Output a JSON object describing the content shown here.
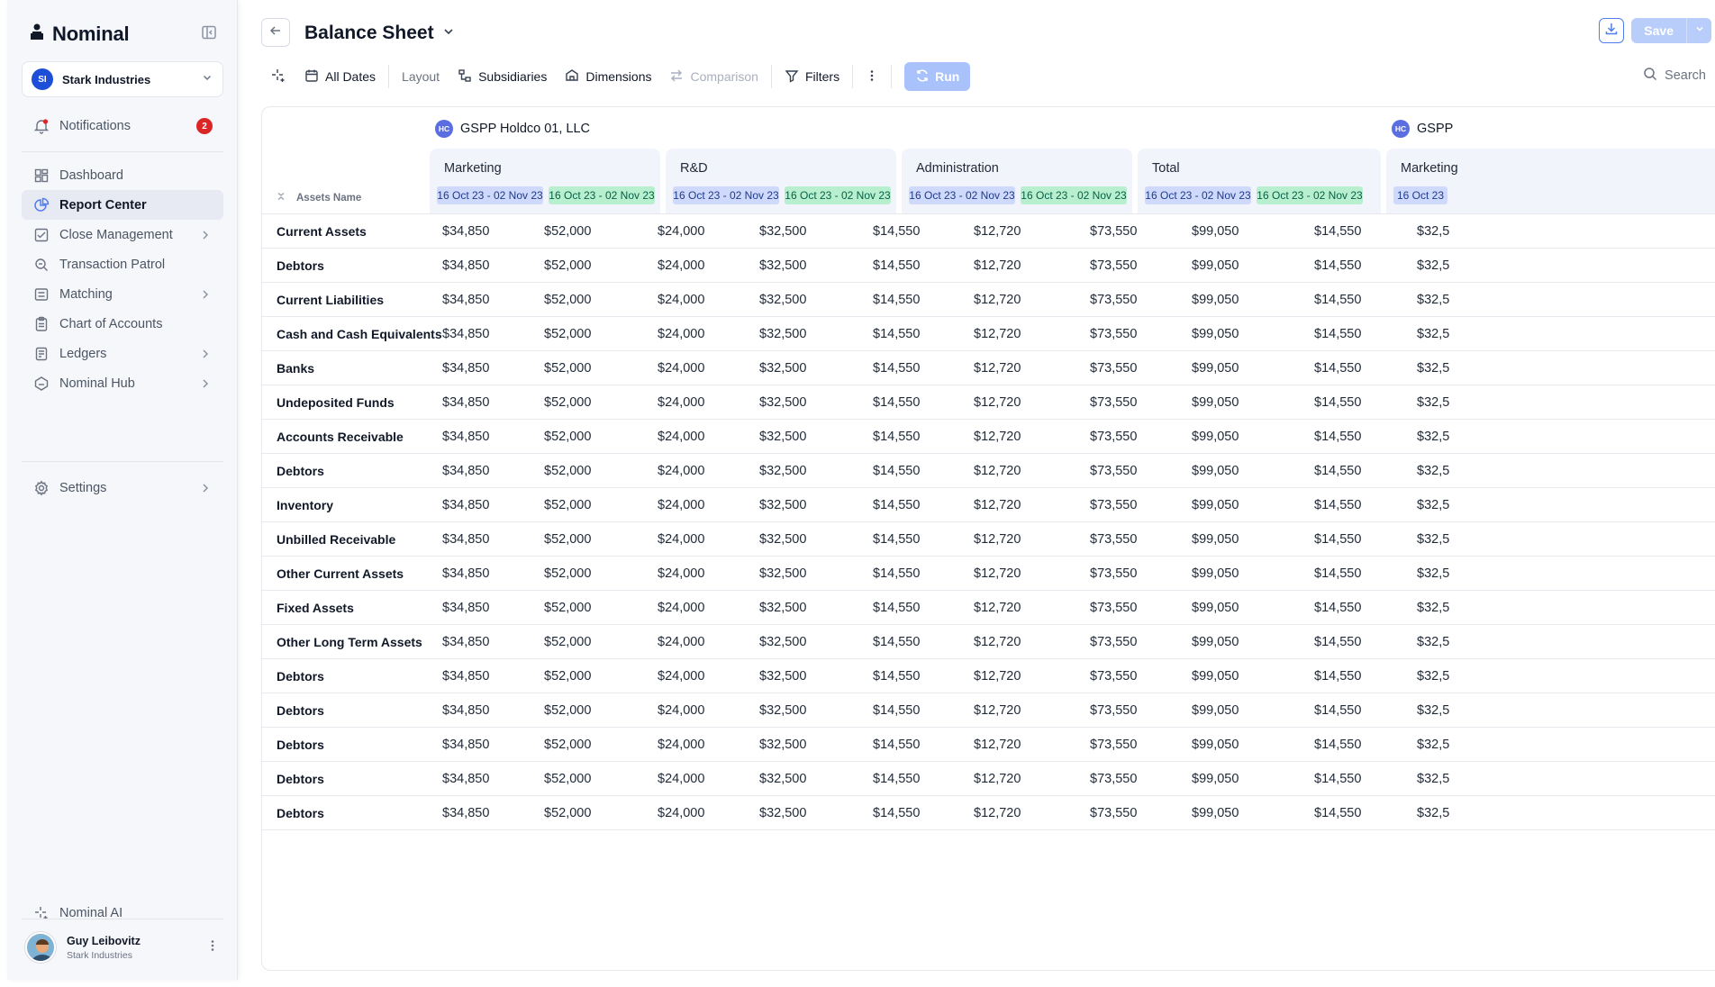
{
  "sidebar": {
    "brand": "Nominal",
    "org": {
      "initials": "SI",
      "name": "Stark Industries"
    },
    "notifications": {
      "label": "Notifications",
      "count": "2"
    },
    "items": [
      {
        "label": "Dashboard",
        "icon": "dashboard-icon",
        "chevron": false,
        "active": false
      },
      {
        "label": "Report Center",
        "icon": "pie-chart-icon",
        "chevron": false,
        "active": true
      },
      {
        "label": "Close Management",
        "icon": "checklist-icon",
        "chevron": true,
        "active": false
      },
      {
        "label": "Transaction Patrol",
        "icon": "search-doc-icon",
        "chevron": false,
        "active": false
      },
      {
        "label": "Matching",
        "icon": "matching-icon",
        "chevron": true,
        "active": false
      },
      {
        "label": "Chart of Accounts",
        "icon": "clipboard-icon",
        "chevron": false,
        "active": false
      },
      {
        "label": "Ledgers",
        "icon": "ledger-icon",
        "chevron": true,
        "active": false
      },
      {
        "label": "Nominal Hub",
        "icon": "hub-icon",
        "chevron": true,
        "active": false
      }
    ],
    "settings": "Settings",
    "ai": "Nominal AI",
    "user": {
      "name": "Guy Leibovitz",
      "org": "Stark Industries"
    }
  },
  "header": {
    "title": "Balance Sheet",
    "save": "Save"
  },
  "toolbar": {
    "all_dates": "All Dates",
    "layout": "Layout",
    "subsidiaries": "Subsidiaries",
    "dimensions": "Dimensions",
    "comparison": "Comparison",
    "filters": "Filters",
    "run": "Run",
    "search": "Search"
  },
  "table": {
    "entities": [
      {
        "initials": "HC",
        "name": "GSPP Holdco 01, LLC"
      },
      {
        "initials": "HC",
        "name": "GSPP"
      }
    ],
    "assets_header": "Assets Name",
    "groups": [
      "Marketing",
      "R&D",
      "Administration",
      "Total",
      "Marketing"
    ],
    "period_a": "16 Oct 23 - 02 Nov 23",
    "period_b": "16 Oct 23 - 02 Nov 23",
    "period_partial": "16 Oct 23",
    "values": [
      "$34,850",
      "$52,000",
      "$24,000",
      "$32,500",
      "$14,550",
      "$12,720",
      "$73,550",
      "$99,050",
      "$14,550",
      "$32,5"
    ],
    "rows": [
      "Current Assets",
      "Debtors",
      "Current Liabilities",
      "Cash and Cash Equivalents",
      "Banks",
      "Undeposited Funds",
      "Accounts Receivable",
      "Debtors",
      "Inventory",
      "Unbilled Receivable",
      "Other Current Assets",
      "Fixed Assets",
      "Other Long Term Assets",
      "Debtors",
      "Debtors",
      "Debtors",
      "Debtors",
      "Debtors"
    ]
  },
  "colors": {
    "accent": "#4f7df0",
    "pill_blue": "#cfd9fb",
    "pill_green": "#b8f0cf",
    "badge_red": "#dc2626"
  }
}
